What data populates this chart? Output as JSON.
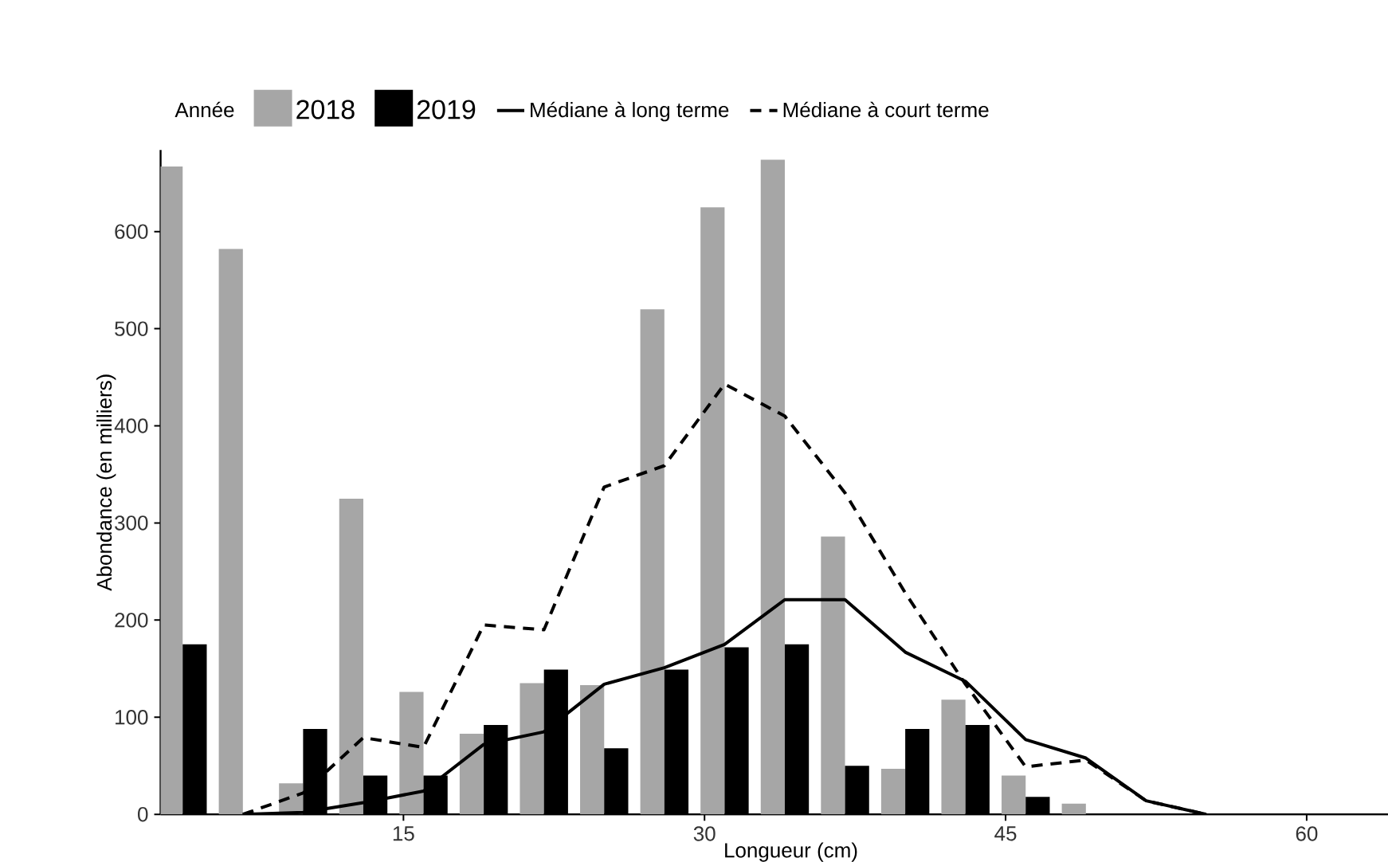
{
  "chart_data": {
    "type": "bar",
    "xlabel": "Longueur (cm)",
    "ylabel": "Abondance (en milliers)",
    "legend_title": "Année",
    "legend": "top",
    "x": [
      4,
      7,
      10,
      13,
      16,
      19,
      22,
      25,
      28,
      31,
      34,
      37,
      40,
      43,
      46,
      49
    ],
    "series": [
      {
        "name": "2018",
        "color": "#a6a6a6",
        "values": [
          667,
          582,
          32,
          325,
          126,
          83,
          135,
          133,
          520,
          625,
          674,
          286,
          47,
          118,
          40,
          11
        ]
      },
      {
        "name": "2019",
        "color": "#000000",
        "values": [
          175,
          null,
          88,
          40,
          40,
          92,
          149,
          68,
          149,
          172,
          175,
          50,
          88,
          92,
          18,
          0
        ]
      },
      {
        "name": "Médiane à long terme",
        "type": "line",
        "line_style": "solid",
        "color": "#000000",
        "x": [
          7,
          10,
          13,
          16,
          19,
          22,
          25,
          28,
          31,
          34,
          37,
          40,
          43,
          46,
          49,
          52,
          55
        ],
        "values": [
          0,
          2,
          12,
          24,
          72,
          85,
          134,
          151,
          175,
          221,
          221,
          167,
          137,
          77,
          58,
          14,
          0
        ]
      },
      {
        "name": "Médiane à court terme",
        "type": "line",
        "line_style": "dashed",
        "color": "#000000",
        "x": [
          7,
          10,
          13,
          16,
          19,
          22,
          25,
          28,
          31,
          34,
          37,
          40,
          43,
          46,
          49,
          52,
          55
        ],
        "values": [
          0,
          22,
          79,
          69,
          195,
          190,
          337,
          359,
          443,
          410,
          331,
          228,
          134,
          49,
          56,
          14,
          0
        ]
      }
    ],
    "xlim": [
      2.9,
      65.7
    ],
    "ylim": [
      0,
      684
    ],
    "xticks": [
      15,
      30,
      45,
      60
    ],
    "yticks": [
      0,
      100,
      200,
      300,
      400,
      500,
      600
    ]
  }
}
